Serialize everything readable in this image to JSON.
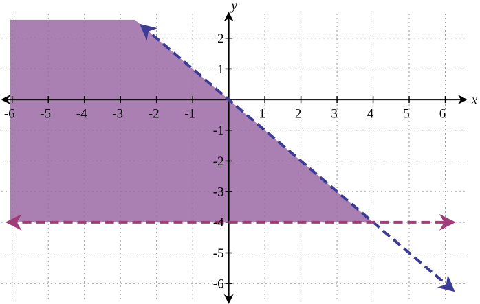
{
  "chart_data": {
    "type": "inequality",
    "xlabel": "x",
    "ylabel": "y",
    "xlim": [
      -6.3,
      6.6
    ],
    "ylim": [
      -6.6,
      2.8
    ],
    "xticks": [
      -6,
      -5,
      -4,
      -3,
      -2,
      -1,
      1,
      2,
      3,
      4,
      5,
      6
    ],
    "yticks": [
      -6,
      -5,
      -4,
      -3,
      -2,
      -1,
      1,
      2
    ],
    "grid": true,
    "region": {
      "color": "#9b6aa6",
      "x": [
        -6.06,
        -2.6,
        4,
        -6.06
      ],
      "values": [
        2.6,
        2.6,
        -4,
        -4
      ]
    },
    "series": [
      {
        "color": "#3c3c96",
        "x": [
          -2.4,
          6.2
        ],
        "values": [
          2.4,
          -6.2
        ]
      },
      {
        "color": "#a03c78",
        "x": [
          -6.1,
          6.2
        ],
        "values": [
          -4,
          -4
        ]
      }
    ]
  }
}
